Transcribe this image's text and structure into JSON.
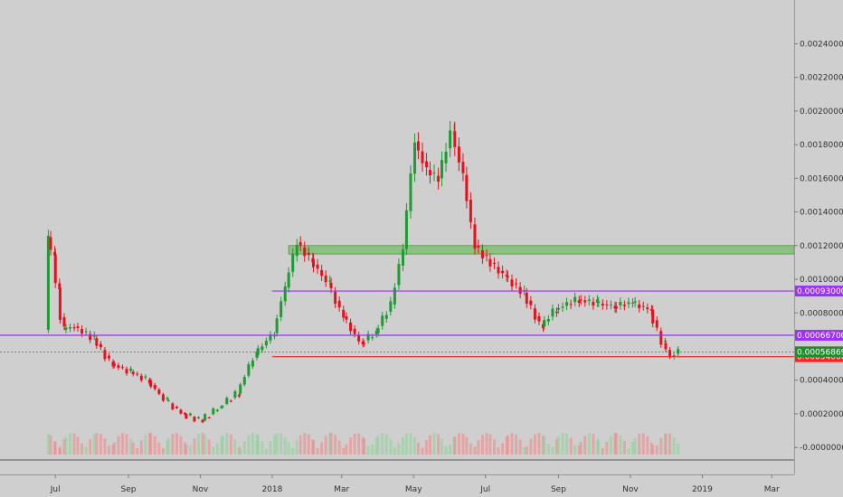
{
  "chart_data": {
    "type": "candlestick",
    "y_ticks": [
      "0.00240000",
      "0.00220000",
      "0.00200000",
      "0.00180000",
      "0.00160000",
      "0.00140000",
      "0.00120000",
      "0.00100000",
      "0.00080000",
      "0.00040000",
      "0.00020000",
      "-0.00000000"
    ],
    "y_tick_values": [
      0.0024,
      0.0022,
      0.002,
      0.0018,
      0.0016,
      0.0014,
      0.0012,
      0.001,
      0.0008,
      0.0004,
      0.0002,
      0
    ],
    "ylim": [
      -0.00016,
      0.00266
    ],
    "x_ticks": [
      "Jul",
      "Sep",
      "Nov",
      "2018",
      "Mar",
      "May",
      "Jul",
      "Sep",
      "Nov",
      "2019",
      "Mar"
    ],
    "x_tick_dates": [
      "2017-07-01",
      "2017-09-01",
      "2017-11-01",
      "2018-01-01",
      "2018-03-01",
      "2018-05-01",
      "2018-07-01",
      "2018-09-01",
      "2018-11-01",
      "2019-01-01",
      "2019-03-01"
    ],
    "xlim": [
      "2017-05-15",
      "2019-03-20"
    ],
    "levels": [
      {
        "label": "0.00093000",
        "value": 0.00093,
        "color": "#9b30ff",
        "start": "2018-01-01"
      },
      {
        "label": "0.00066700",
        "value": 0.000667,
        "color": "#9b30ff",
        "start": "2017-05-15"
      },
      {
        "label": "0.00054000",
        "value": 0.00054,
        "color": "#ff2020",
        "start": "2018-01-01"
      }
    ],
    "current_price": {
      "label": "0.00056869",
      "value": 0.00056869,
      "color": "#1a8f2a"
    },
    "zone": {
      "low": 0.00115,
      "high": 0.0012,
      "start": "2018-01-15",
      "color": "#5fb84e"
    },
    "series": [
      {
        "d": "2017-06-25",
        "v": 0.0007
      },
      {
        "d": "2017-06-27",
        "v": 0.00125
      },
      {
        "d": "2017-07-01",
        "v": 0.00115
      },
      {
        "d": "2017-07-05",
        "v": 0.00095
      },
      {
        "d": "2017-07-10",
        "v": 0.0007
      },
      {
        "d": "2017-07-20",
        "v": 0.00072
      },
      {
        "d": "2017-08-05",
        "v": 0.00065
      },
      {
        "d": "2017-08-20",
        "v": 0.0005
      },
      {
        "d": "2017-09-05",
        "v": 0.00045
      },
      {
        "d": "2017-09-20",
        "v": 0.0004
      },
      {
        "d": "2017-10-05",
        "v": 0.00028
      },
      {
        "d": "2017-10-20",
        "v": 0.0002
      },
      {
        "d": "2017-11-05",
        "v": 0.00016
      },
      {
        "d": "2017-11-20",
        "v": 0.00024
      },
      {
        "d": "2017-12-05",
        "v": 0.00032
      },
      {
        "d": "2017-12-20",
        "v": 0.00055
      },
      {
        "d": "2018-01-05",
        "v": 0.00068
      },
      {
        "d": "2018-01-15",
        "v": 0.00095
      },
      {
        "d": "2018-01-25",
        "v": 0.00122
      },
      {
        "d": "2018-02-05",
        "v": 0.00112
      },
      {
        "d": "2018-02-20",
        "v": 0.00098
      },
      {
        "d": "2018-03-05",
        "v": 0.00078
      },
      {
        "d": "2018-03-20",
        "v": 0.00062
      },
      {
        "d": "2018-04-01",
        "v": 0.00068
      },
      {
        "d": "2018-04-15",
        "v": 0.00085
      },
      {
        "d": "2018-04-25",
        "v": 0.00118
      },
      {
        "d": "2018-05-05",
        "v": 0.00182
      },
      {
        "d": "2018-05-15",
        "v": 0.00165
      },
      {
        "d": "2018-05-25",
        "v": 0.0016
      },
      {
        "d": "2018-06-05",
        "v": 0.00188
      },
      {
        "d": "2018-06-15",
        "v": 0.00162
      },
      {
        "d": "2018-06-25",
        "v": 0.0012
      },
      {
        "d": "2018-07-05",
        "v": 0.00112
      },
      {
        "d": "2018-07-20",
        "v": 0.00102
      },
      {
        "d": "2018-08-05",
        "v": 0.00092
      },
      {
        "d": "2018-08-20",
        "v": 0.00072
      },
      {
        "d": "2018-09-01",
        "v": 0.00082
      },
      {
        "d": "2018-09-20",
        "v": 0.00088
      },
      {
        "d": "2018-10-05",
        "v": 0.00086
      },
      {
        "d": "2018-10-20",
        "v": 0.00084
      },
      {
        "d": "2018-11-05",
        "v": 0.00086
      },
      {
        "d": "2018-11-20",
        "v": 0.00082
      },
      {
        "d": "2018-12-01",
        "v": 0.00062
      },
      {
        "d": "2018-12-08",
        "v": 0.00054
      },
      {
        "d": "2018-12-14",
        "v": 0.00057
      }
    ]
  }
}
